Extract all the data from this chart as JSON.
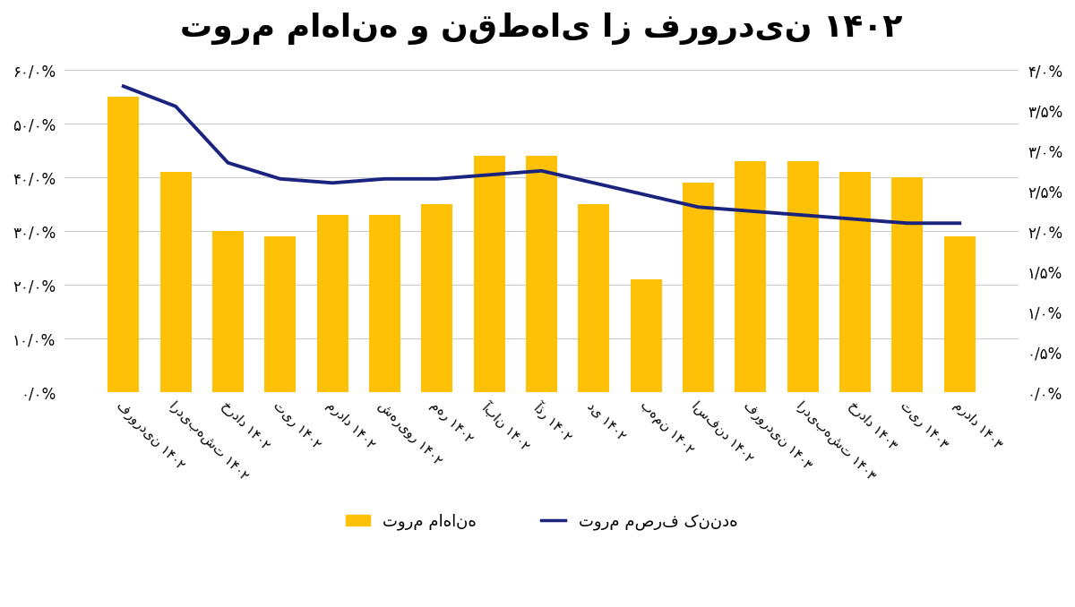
{
  "title": "تورم ماهانه و نقطه‌ای از فروردین ۱۴۰۲",
  "categories": [
    "فروردین ۱۴۰۲",
    "اردیبهشت ۱۴۰۲",
    "خرداد ۱۴۰۲",
    "تیر ۱۴۰۲",
    "مرداد ۱۴۰۲",
    "شهریور ۱۴۰۲",
    "مهر ۱۴۰۲",
    "آبان ۱۴۰۲",
    "آذر ۱۴۰۲",
    "دی ۱۴۰۲",
    "بهمن ۱۴۰۲",
    "اسفند ۱۴۰۲",
    "فروردین ۱۴۰۳",
    "اردیبهشت ۱۴۰۳",
    "خرداد ۱۴۰۳",
    "تیر ۱۴۰۳",
    "مرداد ۱۴۰۳"
  ],
  "bar_values": [
    55,
    41,
    30,
    29,
    33,
    33,
    35,
    44,
    44,
    35,
    21,
    39,
    43,
    43,
    41,
    40,
    29
  ],
  "line_values": [
    3.8,
    3.55,
    2.85,
    2.65,
    2.6,
    2.65,
    2.65,
    2.7,
    2.75,
    2.6,
    2.45,
    2.3,
    2.25,
    2.2,
    2.15,
    2.1,
    2.1
  ],
  "bar_color": "#FFC107",
  "line_color": "#1a237e",
  "background_color": "#ffffff",
  "left_yticks": [
    0,
    10,
    20,
    30,
    40,
    50,
    60
  ],
  "left_tick_labels": [
    "۰/۰%",
    "۱۰/۰%",
    "۲۰/۰%",
    "۳۰/۰%",
    "۴۰/۰%",
    "۵۰/۰%",
    "۶۰/۰%"
  ],
  "right_yticks": [
    0.0,
    0.5,
    1.0,
    1.5,
    2.0,
    2.5,
    3.0,
    3.5,
    4.0
  ],
  "right_tick_labels": [
    "۰/۰%",
    "۰/۵%",
    "۱/۰%",
    "۱/۵%",
    "۲/۰%",
    "۲/۵%",
    "۳/۰%",
    "۳/۵%",
    "۴/۰%"
  ],
  "legend_bar": "تورم ماهانه",
  "legend_line": "تورم مصرف کننده",
  "ylim_left": [
    0,
    63
  ],
  "ylim_right": [
    0,
    4.2
  ],
  "grid_color": "#cccccc",
  "title_fontsize": 26,
  "tick_fontsize": 12,
  "legend_fontsize": 13
}
